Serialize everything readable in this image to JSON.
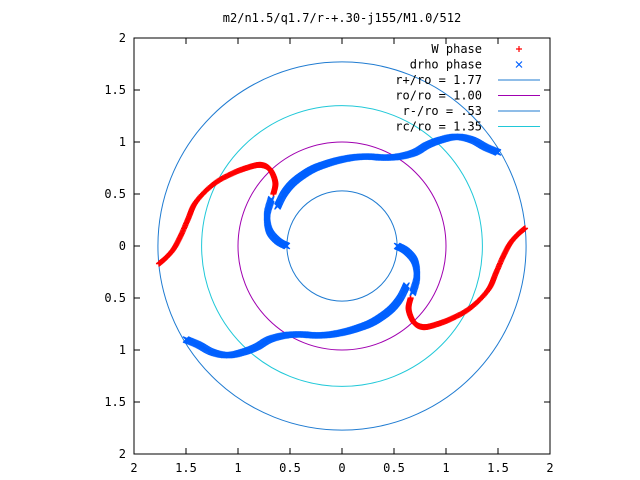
{
  "chart_data": {
    "type": "scatter",
    "title": "m2/n1.5/q1.7/r-+.30-j155/M1.0/512",
    "xlabel": "",
    "ylabel": "",
    "xlim": [
      -2,
      2
    ],
    "ylim": [
      -2,
      2
    ],
    "x_ticks": [
      -2,
      -1.5,
      -1,
      -0.5,
      0,
      0.5,
      1,
      1.5,
      2
    ],
    "y_ticks": [
      -2,
      -1.5,
      -1,
      -0.5,
      0,
      0.5,
      1,
      1.5,
      2
    ],
    "x_tick_labels": [
      "2",
      "1.5",
      "1",
      "0.5",
      "0",
      "0.5",
      "1",
      "1.5",
      "2"
    ],
    "y_tick_labels": [
      "2",
      "1.5",
      "1",
      "0.5",
      "0",
      "0.5",
      "1",
      "1.5",
      "2"
    ],
    "grid": false,
    "legend_position": "top-right",
    "series": [
      {
        "name": "W phase",
        "marker": "plus",
        "color": "#ff0000",
        "arms": [
          {
            "start_angle_deg": 7,
            "points": [
              [
                1.76,
                0.17
              ],
              [
                1.7,
                0.12
              ],
              [
                1.62,
                0.03
              ],
              [
                1.55,
                -0.1
              ],
              [
                1.48,
                -0.26
              ],
              [
                1.42,
                -0.4
              ],
              [
                1.32,
                -0.52
              ],
              [
                1.2,
                -0.62
              ],
              [
                1.05,
                -0.7
              ],
              [
                0.92,
                -0.75
              ],
              [
                0.8,
                -0.78
              ],
              [
                0.72,
                -0.76
              ],
              [
                0.67,
                -0.7
              ],
              [
                0.64,
                -0.6
              ],
              [
                0.66,
                -0.5
              ]
            ]
          },
          {
            "start_angle_deg": 187,
            "points": [
              [
                -1.76,
                -0.17
              ],
              [
                -1.7,
                -0.12
              ],
              [
                -1.62,
                -0.03
              ],
              [
                -1.55,
                0.1
              ],
              [
                -1.48,
                0.26
              ],
              [
                -1.42,
                0.4
              ],
              [
                -1.32,
                0.52
              ],
              [
                -1.2,
                0.62
              ],
              [
                -1.05,
                0.7
              ],
              [
                -0.92,
                0.75
              ],
              [
                -0.8,
                0.78
              ],
              [
                -0.72,
                0.76
              ],
              [
                -0.67,
                0.7
              ],
              [
                -0.64,
                0.6
              ],
              [
                -0.66,
                0.5
              ]
            ]
          }
        ]
      },
      {
        "name": "drho phase",
        "marker": "cross",
        "color": "#0060ff",
        "arms": [
          {
            "start_angle_deg": 30,
            "points": [
              [
                1.5,
                0.9
              ],
              [
                1.38,
                0.95
              ],
              [
                1.25,
                1.02
              ],
              [
                1.1,
                1.05
              ],
              [
                0.95,
                1.02
              ],
              [
                0.82,
                0.97
              ],
              [
                0.7,
                0.9
              ],
              [
                0.55,
                0.86
              ],
              [
                0.4,
                0.85
              ],
              [
                0.25,
                0.86
              ],
              [
                0.1,
                0.85
              ],
              [
                -0.05,
                0.82
              ],
              [
                -0.18,
                0.78
              ],
              [
                -0.28,
                0.74
              ],
              [
                -0.38,
                0.68
              ],
              [
                -0.48,
                0.6
              ],
              [
                -0.56,
                0.5
              ],
              [
                -0.62,
                0.38
              ]
            ]
          },
          {
            "start_angle_deg": 210,
            "points": [
              [
                -1.5,
                -0.9
              ],
              [
                -1.38,
                -0.95
              ],
              [
                -1.25,
                -1.02
              ],
              [
                -1.1,
                -1.05
              ],
              [
                -0.95,
                -1.02
              ],
              [
                -0.82,
                -0.97
              ],
              [
                -0.7,
                -0.9
              ],
              [
                -0.55,
                -0.86
              ],
              [
                -0.4,
                -0.85
              ],
              [
                -0.25,
                -0.86
              ],
              [
                -0.1,
                -0.85
              ],
              [
                0.05,
                -0.82
              ],
              [
                0.18,
                -0.78
              ],
              [
                0.28,
                -0.74
              ],
              [
                0.38,
                -0.68
              ],
              [
                0.48,
                -0.6
              ],
              [
                0.56,
                -0.5
              ],
              [
                0.62,
                -0.38
              ]
            ]
          },
          {
            "start_angle_deg": 0,
            "points": [
              [
                0.53,
                0.0
              ],
              [
                0.62,
                -0.05
              ],
              [
                0.7,
                -0.15
              ],
              [
                0.72,
                -0.3
              ],
              [
                0.68,
                -0.45
              ]
            ]
          },
          {
            "start_angle_deg": 180,
            "points": [
              [
                -0.53,
                0.0
              ],
              [
                -0.62,
                0.05
              ],
              [
                -0.7,
                0.15
              ],
              [
                -0.72,
                0.3
              ],
              [
                -0.68,
                0.45
              ]
            ]
          }
        ]
      },
      {
        "name": "r+/ro = 1.77",
        "type": "circle",
        "radius": 1.77,
        "color": "#1f7bd1"
      },
      {
        "name": "ro/ro = 1.00",
        "type": "circle",
        "radius": 1.0,
        "color": "#a000b0"
      },
      {
        "name": "r-/ro = .53",
        "type": "circle",
        "radius": 0.53,
        "color": "#1f7bd1"
      },
      {
        "name": "rc/ro = 1.35",
        "type": "circle",
        "radius": 1.35,
        "color": "#20c8d8"
      }
    ]
  }
}
